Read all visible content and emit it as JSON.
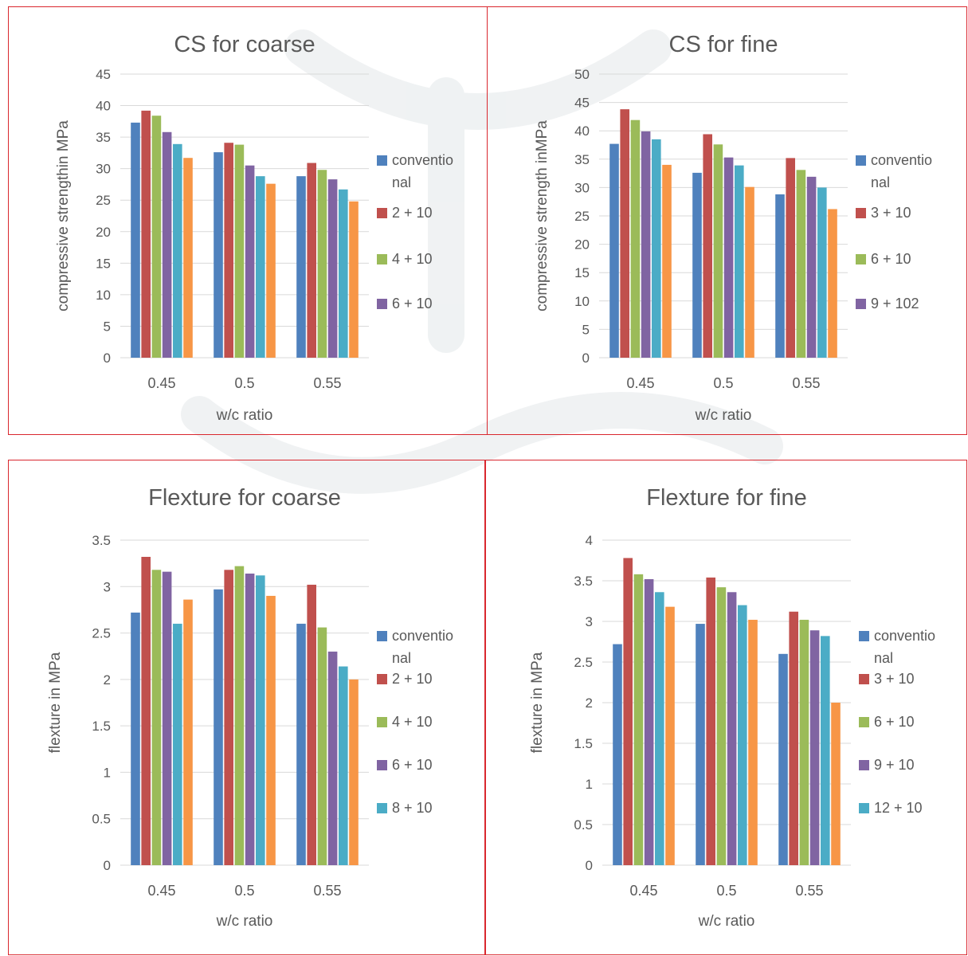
{
  "series_colors": [
    "#4f81bd",
    "#c0504d",
    "#9bbb59",
    "#8064a2",
    "#4bacc6",
    "#f79646"
  ],
  "chart_data": [
    {
      "type": "bar",
      "title": "CS for coarse",
      "xlabel": "w/c ratio",
      "ylabel": "compressive strengthin MPa",
      "categories": [
        "0.45",
        "0.5",
        "0.55"
      ],
      "ylim": [
        0,
        45
      ],
      "yticks": [
        "0",
        "5",
        "10",
        "15",
        "20",
        "25",
        "30",
        "35",
        "40",
        "45"
      ],
      "tick_values": [
        0,
        5,
        10,
        15,
        20,
        25,
        30,
        35,
        40,
        45
      ],
      "grid": true,
      "legend_position": "right",
      "series": [
        {
          "values": [
            37.3,
            32.6,
            28.8
          ]
        },
        {
          "values": [
            39.2,
            34.1,
            30.9
          ]
        },
        {
          "values": [
            38.4,
            33.8,
            29.8
          ]
        },
        {
          "values": [
            35.8,
            30.5,
            28.3
          ]
        },
        {
          "values": [
            33.9,
            28.8,
            26.7
          ]
        },
        {
          "values": [
            31.7,
            27.6,
            24.8
          ]
        }
      ],
      "legend": [
        {
          "series": 0,
          "lines": [
            "conventio",
            "nal"
          ]
        },
        {
          "series": 1,
          "lines": [
            "2 + 10"
          ]
        },
        {
          "series": 2,
          "lines": [
            "4 + 10"
          ]
        },
        {
          "series": 3,
          "lines": [
            "6 + 10"
          ]
        }
      ]
    },
    {
      "type": "bar",
      "title": "CS for fine",
      "xlabel": "w/c ratio",
      "ylabel": "compressive strength inMPa",
      "categories": [
        "0.45",
        "0.5",
        "0.55"
      ],
      "ylim": [
        0,
        50
      ],
      "yticks": [
        "0",
        "5",
        "10",
        "15",
        "20",
        "25",
        "30",
        "35",
        "40",
        "45",
        "50"
      ],
      "tick_values": [
        0,
        5,
        10,
        15,
        20,
        25,
        30,
        35,
        40,
        45,
        50
      ],
      "grid": true,
      "legend_position": "right",
      "series": [
        {
          "values": [
            37.7,
            32.6,
            28.8
          ]
        },
        {
          "values": [
            43.8,
            39.4,
            35.2
          ]
        },
        {
          "values": [
            41.9,
            37.6,
            33.1
          ]
        },
        {
          "values": [
            39.9,
            35.3,
            31.9
          ]
        },
        {
          "values": [
            38.5,
            33.9,
            30.0
          ]
        },
        {
          "values": [
            34.0,
            30.1,
            26.2
          ]
        }
      ],
      "legend": [
        {
          "series": 0,
          "lines": [
            "conventio",
            "nal"
          ]
        },
        {
          "series": 1,
          "lines": [
            "3 + 10"
          ]
        },
        {
          "series": 2,
          "lines": [
            "6 + 10"
          ]
        },
        {
          "series": 3,
          "lines": [
            "9 + 102"
          ]
        }
      ]
    },
    {
      "type": "bar",
      "title": "Flexture for coarse",
      "xlabel": "w/c ratio",
      "ylabel": "flexture  in MPa",
      "categories": [
        "0.45",
        "0.5",
        "0.55"
      ],
      "ylim": [
        0,
        3.5
      ],
      "yticks": [
        "0",
        "0.5",
        "1",
        "1.5",
        "2",
        "2.5",
        "3",
        "3.5"
      ],
      "tick_values": [
        0,
        0.5,
        1,
        1.5,
        2,
        2.5,
        3,
        3.5
      ],
      "grid": true,
      "legend_position": "right",
      "series": [
        {
          "values": [
            2.72,
            2.97,
            2.6
          ]
        },
        {
          "values": [
            3.32,
            3.18,
            3.02
          ]
        },
        {
          "values": [
            3.18,
            3.22,
            2.56
          ]
        },
        {
          "values": [
            3.16,
            3.14,
            2.3
          ]
        },
        {
          "values": [
            2.6,
            3.12,
            2.14
          ]
        },
        {
          "values": [
            2.86,
            2.9,
            2.0
          ]
        }
      ],
      "legend": [
        {
          "series": 0,
          "lines": [
            "conventio",
            "nal"
          ]
        },
        {
          "series": 1,
          "lines": [
            "2 + 10"
          ]
        },
        {
          "series": 2,
          "lines": [
            "4 + 10"
          ]
        },
        {
          "series": 3,
          "lines": [
            "6 + 10"
          ]
        },
        {
          "series": 4,
          "lines": [
            "8 + 10"
          ]
        }
      ]
    },
    {
      "type": "bar",
      "title": "Flexture for fine",
      "xlabel": "w/c ratio",
      "ylabel": "flexture in MPa",
      "categories": [
        "0.45",
        "0.5",
        "0.55"
      ],
      "ylim": [
        0,
        4
      ],
      "yticks": [
        "0",
        "0.5",
        "1",
        "1.5",
        "2",
        "2.5",
        "3",
        "3.5",
        "4"
      ],
      "tick_values": [
        0,
        0.5,
        1,
        1.5,
        2,
        2.5,
        3,
        3.5,
        4
      ],
      "grid": true,
      "legend_position": "right",
      "series": [
        {
          "values": [
            2.72,
            2.97,
            2.6
          ]
        },
        {
          "values": [
            3.78,
            3.54,
            3.12
          ]
        },
        {
          "values": [
            3.58,
            3.42,
            3.02
          ]
        },
        {
          "values": [
            3.52,
            3.36,
            2.89
          ]
        },
        {
          "values": [
            3.36,
            3.2,
            2.82
          ]
        },
        {
          "values": [
            3.18,
            3.02,
            2.0
          ]
        }
      ],
      "legend": [
        {
          "series": 0,
          "lines": [
            "conventio",
            "nal"
          ]
        },
        {
          "series": 1,
          "lines": [
            "3 + 10"
          ]
        },
        {
          "series": 2,
          "lines": [
            "6 + 10"
          ]
        },
        {
          "series": 3,
          "lines": [
            "9 + 10"
          ]
        },
        {
          "series": 4,
          "lines": [
            "12 + 10"
          ]
        }
      ]
    }
  ]
}
